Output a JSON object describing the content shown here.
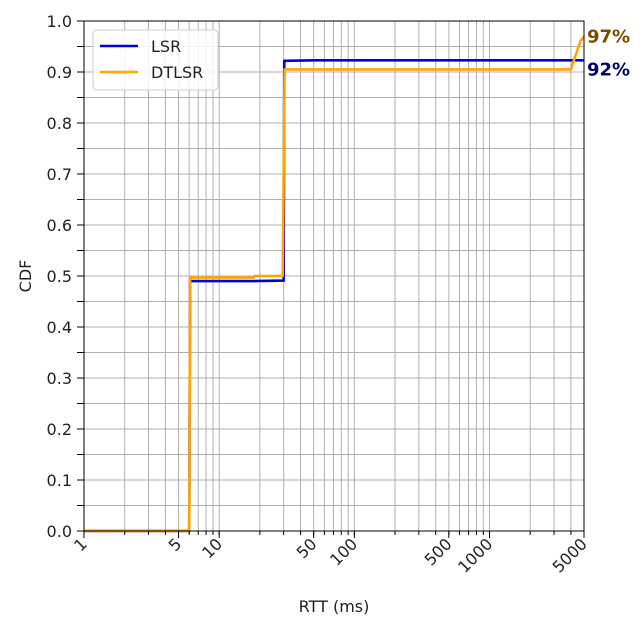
{
  "chart_data": {
    "type": "line",
    "xlabel": "RTT (ms)",
    "ylabel": "CDF",
    "xscale": "log",
    "xlim": [
      1,
      5000
    ],
    "ylim": [
      0,
      1
    ],
    "xticks": [
      {
        "value": 1,
        "label": "1"
      },
      {
        "value": 5,
        "label": "5"
      },
      {
        "value": 10,
        "label": "10"
      },
      {
        "value": 50,
        "label": "50"
      },
      {
        "value": 100,
        "label": "100"
      },
      {
        "value": 500,
        "label": "500"
      },
      {
        "value": 1000,
        "label": "1000"
      },
      {
        "value": 5000,
        "label": "5000"
      }
    ],
    "yticks": [
      {
        "value": 0.0,
        "label": "0.0"
      },
      {
        "value": 0.1,
        "label": "0.1"
      },
      {
        "value": 0.2,
        "label": "0.2"
      },
      {
        "value": 0.3,
        "label": "0.3"
      },
      {
        "value": 0.4,
        "label": "0.4"
      },
      {
        "value": 0.5,
        "label": "0.5"
      },
      {
        "value": 0.6,
        "label": "0.6"
      },
      {
        "value": 0.7,
        "label": "0.7"
      },
      {
        "value": 0.8,
        "label": "0.8"
      },
      {
        "value": 0.9,
        "label": "0.9"
      },
      {
        "value": 1.0,
        "label": "1.0"
      }
    ],
    "grid": true,
    "legend_position": "top-left",
    "series": [
      {
        "name": "LSR",
        "color": "#0000dd",
        "points": [
          [
            1,
            0.0
          ],
          [
            6.0,
            0.0
          ],
          [
            6.1,
            0.49
          ],
          [
            18,
            0.49
          ],
          [
            30,
            0.491
          ],
          [
            30.3,
            0.922
          ],
          [
            50,
            0.923
          ],
          [
            5000,
            0.923
          ]
        ]
      },
      {
        "name": "DTLSR",
        "color": "#ffa500",
        "points": [
          [
            1,
            0.0
          ],
          [
            6.0,
            0.0
          ],
          [
            6.1,
            0.497
          ],
          [
            18,
            0.497
          ],
          [
            18.2,
            0.5
          ],
          [
            29.5,
            0.5
          ],
          [
            30.5,
            0.905
          ],
          [
            4000,
            0.905
          ],
          [
            4300,
            0.93
          ],
          [
            4700,
            0.96
          ],
          [
            5000,
            0.97
          ]
        ]
      }
    ],
    "annotations": [
      {
        "text": "97%",
        "color": "#7a4e00",
        "y": 0.97
      },
      {
        "text": "92%",
        "color": "#00006e",
        "y": 0.905
      }
    ]
  }
}
